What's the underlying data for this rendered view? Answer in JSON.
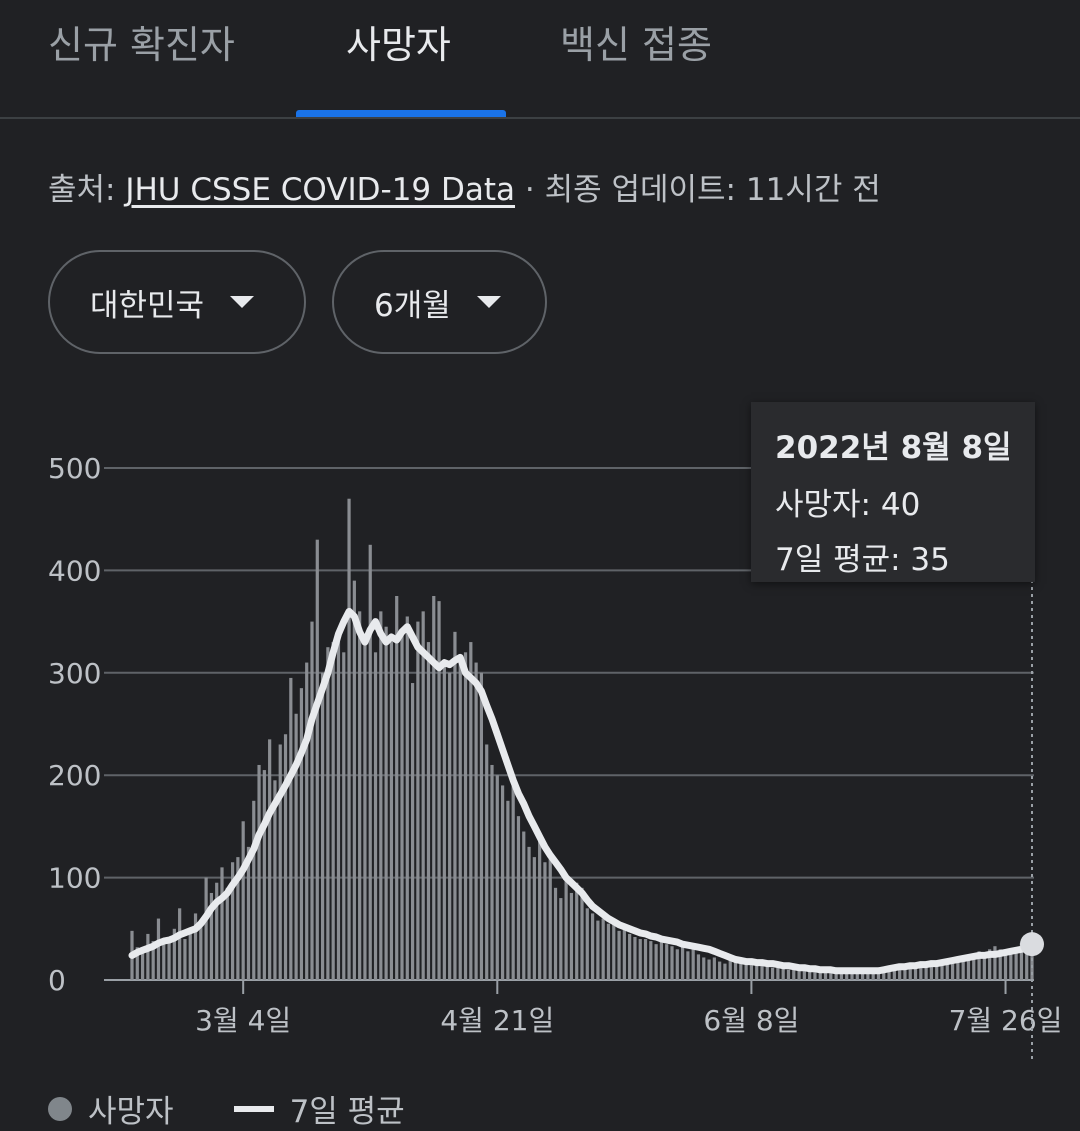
{
  "tabs": [
    {
      "label": "신규 확진자"
    },
    {
      "label": "사망자"
    },
    {
      "label": "백신 접종"
    }
  ],
  "source": {
    "prefix": "출처: ",
    "link": "JHU CSSE COVID-19 Data",
    "suffix": " · 최종 업데이트: 11시간 전"
  },
  "filters": {
    "country": "대한민국",
    "period": "6개월"
  },
  "tooltip": {
    "date": "2022년 8월 8일",
    "deaths": "사망자: 40",
    "avg": "7일 평균: 35"
  },
  "legend": {
    "deaths": "사망자",
    "avg": "7일 평균"
  },
  "colors": {
    "accent": "#1a73e8",
    "bars": "#8a8d92",
    "avg_line": "#e8eaed"
  },
  "chart_data": {
    "type": "bar",
    "ylim": [
      0,
      500
    ],
    "yticks": [
      0,
      100,
      200,
      300,
      400,
      500
    ],
    "xticks": [
      {
        "label": "3월 4일",
        "index": 21
      },
      {
        "label": "4월 21일",
        "index": 69
      },
      {
        "label": "6월 8일",
        "index": 117
      },
      {
        "label": "7월 26일",
        "index": 165
      }
    ],
    "daily_deaths": [
      48,
      32,
      30,
      45,
      38,
      60,
      35,
      42,
      50,
      70,
      40,
      45,
      65,
      55,
      100,
      85,
      95,
      110,
      90,
      115,
      120,
      155,
      130,
      175,
      210,
      205,
      235,
      195,
      230,
      240,
      295,
      260,
      285,
      310,
      350,
      430,
      300,
      325,
      330,
      340,
      320,
      470,
      390,
      360,
      335,
      425,
      320,
      360,
      345,
      330,
      375,
      340,
      355,
      290,
      350,
      360,
      330,
      375,
      370,
      310,
      300,
      340,
      310,
      320,
      330,
      310,
      300,
      230,
      210,
      200,
      190,
      175,
      200,
      160,
      145,
      130,
      120,
      140,
      115,
      120,
      90,
      80,
      100,
      85,
      95,
      90,
      70,
      65,
      58,
      60,
      55,
      55,
      48,
      50,
      45,
      42,
      40,
      40,
      38,
      35,
      38,
      35,
      33,
      30,
      35,
      28,
      30,
      25,
      22,
      20,
      22,
      18,
      16,
      20,
      18,
      17,
      16,
      20,
      16,
      15,
      14,
      12,
      14,
      12,
      10,
      12,
      13,
      12,
      10,
      10,
      9,
      8,
      10,
      9,
      10,
      8,
      8,
      8,
      7,
      9,
      10,
      8,
      9,
      9,
      10,
      12,
      14,
      16,
      15,
      15,
      16,
      14,
      16,
      15,
      20,
      19,
      20,
      20,
      22,
      25,
      28,
      26,
      30,
      33,
      30,
      28,
      30,
      32,
      36,
      38,
      40
    ],
    "avg": [
      24,
      27,
      29,
      31,
      33,
      36,
      38,
      39,
      41,
      44,
      46,
      48,
      50,
      55,
      62,
      70,
      76,
      80,
      85,
      93,
      100,
      108,
      118,
      128,
      142,
      152,
      163,
      172,
      181,
      190,
      200,
      210,
      222,
      235,
      255,
      270,
      285,
      300,
      320,
      338,
      350,
      360,
      355,
      340,
      330,
      342,
      350,
      338,
      330,
      335,
      332,
      340,
      345,
      335,
      325,
      320,
      315,
      310,
      305,
      310,
      308,
      312,
      315,
      300,
      295,
      290,
      282,
      268,
      255,
      240,
      225,
      210,
      195,
      182,
      172,
      160,
      150,
      140,
      130,
      122,
      115,
      108,
      100,
      95,
      90,
      85,
      78,
      72,
      68,
      64,
      60,
      57,
      54,
      52,
      50,
      48,
      46,
      45,
      43,
      42,
      40,
      39,
      38,
      37,
      35,
      34,
      33,
      32,
      31,
      30,
      28,
      26,
      24,
      22,
      20,
      19,
      18,
      18,
      17,
      17,
      16,
      16,
      15,
      14,
      14,
      13,
      12,
      12,
      11,
      11,
      10,
      10,
      10,
      9,
      9,
      9,
      9,
      9,
      9,
      9,
      9,
      9,
      10,
      11,
      12,
      13,
      13,
      14,
      14,
      15,
      15,
      16,
      16,
      17,
      18,
      19,
      20,
      21,
      22,
      23,
      24,
      24,
      25,
      25,
      26,
      27,
      28,
      29,
      30,
      32,
      35
    ]
  }
}
